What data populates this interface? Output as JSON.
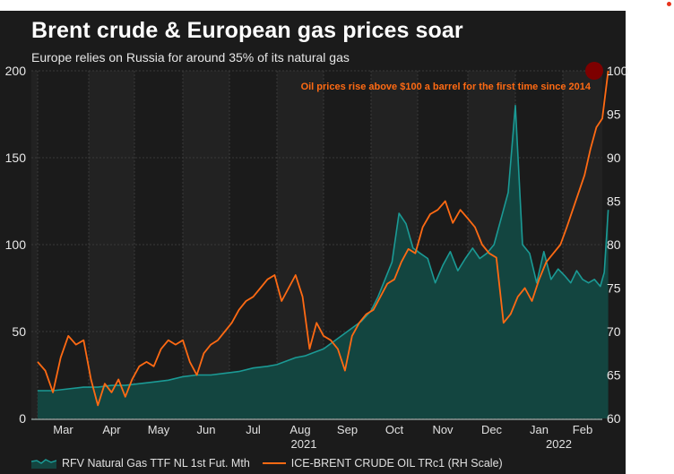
{
  "header": {
    "title": "Brent crude & European gas prices soar",
    "subtitle": "Europe relies on Russia for around 35% of its natural gas"
  },
  "colors": {
    "gas_fill": "#134540",
    "gas_line": "#1b9a95",
    "oil_line": "#ff6a13",
    "annotation_dot": "#7d0000",
    "band_dark": "#1b1b1b",
    "band_light": "#222222",
    "grid": "#3a3a3a"
  },
  "chart_data": {
    "type": "line",
    "title": "Brent crude & European gas prices soar",
    "subtitle": "Europe relies on Russia for around 35% of its natural gas",
    "x_range": [
      "2021-02-20",
      "2022-02-28"
    ],
    "x_ticks": [
      "Mar",
      "Apr",
      "May",
      "Jun",
      "Jul",
      "Aug",
      "Sep",
      "Oct",
      "Nov",
      "Dec",
      "Jan",
      "Feb"
    ],
    "year_labels": [
      "2021",
      "2022"
    ],
    "left_axis": {
      "ticks": [
        "0",
        "50",
        "100",
        "150",
        "200"
      ],
      "ylim": [
        0,
        200
      ]
    },
    "right_axis": {
      "ticks": [
        "60",
        "65",
        "70",
        "75",
        "80",
        "85",
        "90",
        "95",
        "100"
      ],
      "ylim": [
        60,
        100
      ],
      "label": "RH Scale"
    },
    "grid": true,
    "legend_position": "bottom-left",
    "annotation": {
      "text": "Oil prices rise above $100 a barrel for the first time since 2014",
      "at_value": 100
    },
    "series": [
      {
        "name": "RFV Natural Gas TTF NL 1st Fut. Mth",
        "axis": "left",
        "style": "area",
        "x_month_index": [
          0,
          0.3,
          0.6,
          0.9,
          1.2,
          1.5,
          1.8,
          2.1,
          2.4,
          2.7,
          3.0,
          3.3,
          3.6,
          3.9,
          4.2,
          4.5,
          4.8,
          5.0,
          5.2,
          5.4,
          5.6,
          5.8,
          6.0,
          6.2,
          6.4,
          6.6,
          6.8,
          7.0,
          7.15,
          7.3,
          7.45,
          7.6,
          7.75,
          7.9,
          8.05,
          8.2,
          8.35,
          8.5,
          8.65,
          8.8,
          8.95,
          9.1,
          9.25,
          9.4,
          9.55,
          9.7,
          9.85,
          10.0,
          10.15,
          10.3,
          10.45,
          10.6,
          10.75,
          10.9,
          11.05,
          11.2,
          11.35,
          11.5,
          11.65,
          11.8,
          11.95,
          12.05,
          12.15
        ],
        "values": [
          16,
          16,
          17,
          18,
          18,
          19,
          19,
          20,
          21,
          22,
          24,
          25,
          25,
          26,
          27,
          29,
          30,
          31,
          33,
          35,
          36,
          38,
          40,
          44,
          48,
          52,
          56,
          62,
          70,
          80,
          90,
          118,
          112,
          98,
          95,
          92,
          78,
          88,
          96,
          85,
          92,
          98,
          92,
          95,
          100,
          115,
          130,
          180,
          100,
          95,
          78,
          96,
          80,
          86,
          82,
          78,
          85,
          80,
          78,
          80,
          76,
          84,
          120
        ]
      },
      {
        "name": "ICE-BRENT CRUDE OIL TRc1 (RH Scale)",
        "axis": "right",
        "style": "line",
        "x_month_index": [
          0,
          0.15,
          0.3,
          0.45,
          0.6,
          0.75,
          0.9,
          1.05,
          1.2,
          1.35,
          1.5,
          1.65,
          1.8,
          1.95,
          2.1,
          2.25,
          2.4,
          2.55,
          2.7,
          2.85,
          3.0,
          3.15,
          3.3,
          3.45,
          3.6,
          3.75,
          3.9,
          4.05,
          4.2,
          4.35,
          4.5,
          4.65,
          4.8,
          4.95,
          5.1,
          5.25,
          5.4,
          5.55,
          5.7,
          5.85,
          6.0,
          6.15,
          6.3,
          6.45,
          6.6,
          6.75,
          6.9,
          7.05,
          7.2,
          7.35,
          7.5,
          7.65,
          7.8,
          7.95,
          8.1,
          8.25,
          8.4,
          8.55,
          8.7,
          8.85,
          9.0,
          9.15,
          9.3,
          9.45,
          9.6,
          9.75,
          9.9,
          10.05,
          10.2,
          10.35,
          10.5,
          10.65,
          10.8,
          10.95,
          11.1,
          11.25,
          11.4,
          11.55,
          11.7,
          11.85,
          12.0,
          12.15
        ],
        "values": [
          66.5,
          65.5,
          63.0,
          67.0,
          69.5,
          68.5,
          69.0,
          64.5,
          61.5,
          64.0,
          63.0,
          64.5,
          62.5,
          64.5,
          66.0,
          66.5,
          66.0,
          68.0,
          69.0,
          68.5,
          69.0,
          66.5,
          65.0,
          67.5,
          68.5,
          69.0,
          70.0,
          71.0,
          72.5,
          73.5,
          74.0,
          75.0,
          76.0,
          76.5,
          73.5,
          75.0,
          76.5,
          74.0,
          68.0,
          71.0,
          69.5,
          69.0,
          68.0,
          65.5,
          69.5,
          71.0,
          72.0,
          72.5,
          74.0,
          75.5,
          76.0,
          78.0,
          79.5,
          79.0,
          82.0,
          83.5,
          84.0,
          85.0,
          82.5,
          84.0,
          83.0,
          82.0,
          80.0,
          79.0,
          78.5,
          71.0,
          72.0,
          74.0,
          75.0,
          73.5,
          76.0,
          78.0,
          79.0,
          80.0,
          82.0,
          84.0,
          86.0,
          88.0,
          91.0,
          93.5,
          94.5,
          100.0
        ]
      }
    ]
  },
  "legend": {
    "items": [
      {
        "label": "RFV Natural Gas TTF NL 1st Fut. Mth"
      },
      {
        "label": "ICE-BRENT CRUDE OIL TRc1 (RH Scale)"
      }
    ]
  }
}
